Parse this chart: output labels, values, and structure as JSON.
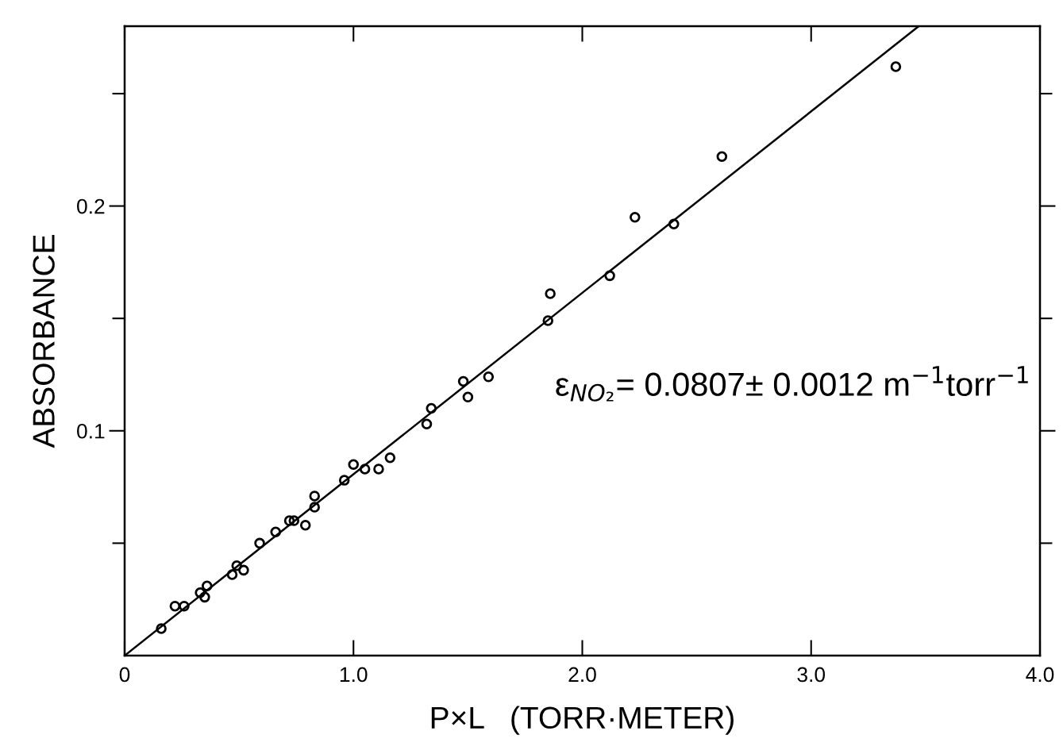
{
  "chart_data": {
    "type": "scatter",
    "xlabel": "P×L   (TORR·METER)",
    "ylabel": "ABSORBANCE",
    "xlim": [
      0,
      4.0
    ],
    "ylim": [
      0,
      0.28
    ],
    "xticks": [
      0,
      {
        "value": 1.0,
        "label": "1.0"
      },
      {
        "value": 2.0,
        "label": "2.0"
      },
      {
        "value": 3.0,
        "label": "3.0"
      },
      {
        "value": 4.0,
        "label": "4.0"
      }
    ],
    "yticks": [
      {
        "value": 0.05,
        "label": null
      },
      0.1,
      {
        "value": 0.15,
        "label": null
      },
      0.2,
      {
        "value": 0.25,
        "label": null
      }
    ],
    "grid": false,
    "legend": false,
    "annotations": [
      "ε$_{NO₂}$= 0.0807± 0.0012 m$^{−1}$torr$^{−1}$"
    ],
    "series": [
      {
        "marker": "circle",
        "color": "#000000",
        "x": [
          0.16,
          0.22,
          0.26,
          0.33,
          0.35,
          0.36,
          0.47,
          0.49,
          0.52,
          0.59,
          0.66,
          0.72,
          0.74,
          0.79,
          0.83,
          0.83,
          0.96,
          1.0,
          1.05,
          1.11,
          1.16,
          1.32,
          1.34,
          1.48,
          1.5,
          1.59,
          1.85,
          1.86,
          2.12,
          2.23,
          2.4,
          2.61,
          3.37
        ],
        "values": [
          0.012,
          0.022,
          0.022,
          0.028,
          0.026,
          0.031,
          0.036,
          0.04,
          0.038,
          0.05,
          0.055,
          0.06,
          0.06,
          0.058,
          0.066,
          0.071,
          0.078,
          0.085,
          0.083,
          0.083,
          0.088,
          0.103,
          0.11,
          0.122,
          0.115,
          0.124,
          0.149,
          0.161,
          0.169,
          0.195,
          0.192,
          0.222,
          0.262
        ]
      },
      {
        "type": "line",
        "color": "#000000",
        "line_style": "solid",
        "x": [
          0,
          3.47
        ],
        "values": [
          0,
          0.28
        ]
      }
    ]
  }
}
